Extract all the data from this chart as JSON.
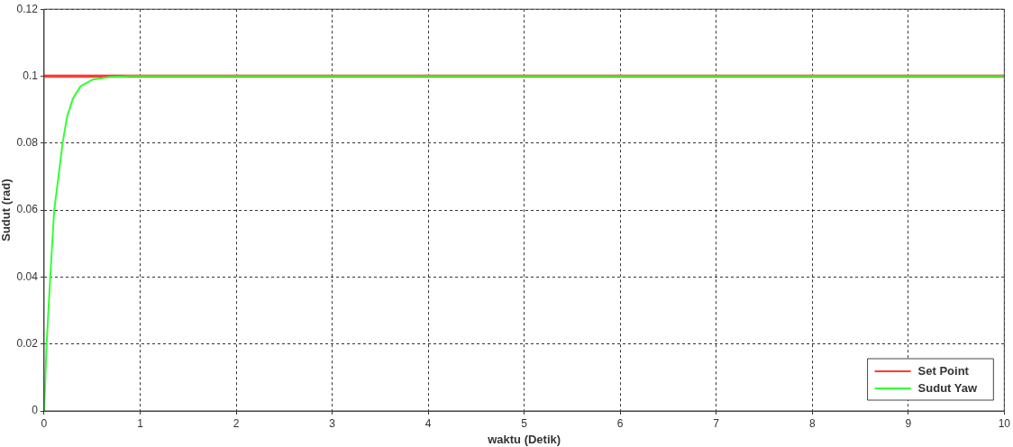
{
  "chart_data": {
    "type": "line",
    "xlabel": "waktu (Detik)",
    "ylabel": "Sudut (rad)",
    "xlim": [
      0,
      10
    ],
    "xticks": [
      0,
      1,
      2,
      3,
      4,
      5,
      6,
      7,
      8,
      9,
      10
    ],
    "ylim": [
      0,
      0.12
    ],
    "yticks": [
      0,
      0.02,
      0.04,
      0.06,
      0.08,
      0.1,
      0.12
    ],
    "grid": true,
    "legend": "bottom right",
    "line_style": "solid",
    "marker": "none",
    "series": [
      {
        "name": "Set Point",
        "color": "#ff3b2f",
        "x": [
          0,
          10
        ],
        "values": [
          0.1,
          0.1
        ]
      },
      {
        "name": "Sudut Yaw",
        "color": "#33ff33",
        "x": [
          0,
          0.026,
          0.064,
          0.105,
          0.15,
          0.192,
          0.24,
          0.3,
          0.38,
          0.51,
          0.67,
          0.9,
          10
        ],
        "values": [
          0,
          0.02,
          0.04,
          0.06,
          0.07,
          0.08,
          0.088,
          0.0933,
          0.097,
          0.099,
          0.0997,
          0.1,
          0.1
        ]
      }
    ]
  }
}
